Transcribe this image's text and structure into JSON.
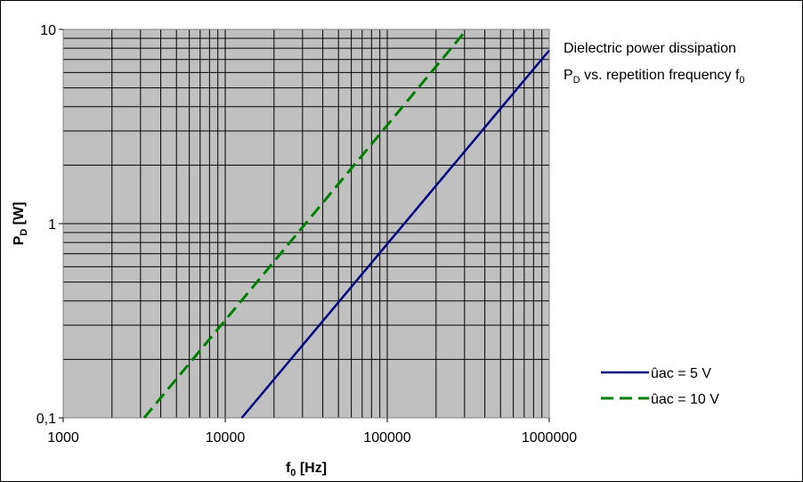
{
  "chart_data": {
    "type": "line",
    "xscale": "log",
    "yscale": "log",
    "xlim": [
      1000,
      1000000
    ],
    "ylim": [
      0.1,
      10
    ],
    "xticks": [
      "1000",
      "10000",
      "100000",
      "1000000"
    ],
    "yticks": [
      "0,1",
      "1",
      "10"
    ],
    "grid": true,
    "xlabel": {
      "main": "f",
      "sub": "0",
      "unit": " [Hz]"
    },
    "ylabel": {
      "main": "P",
      "sub": "D",
      "unit": " [W]"
    },
    "annotation": {
      "line1": "Dielectric power dissipation",
      "line2_p": "P",
      "line2_psub": "D",
      "line2_text": " vs. repetition frequency f",
      "line2_fsub": "0"
    },
    "legend_position": "bottom-right",
    "series": [
      {
        "name": "ûac = 5 V",
        "color": "#000080",
        "dash": "solid",
        "x": [
          12660,
          1000000
        ],
        "y": [
          0.1,
          7.8
        ]
      },
      {
        "name": "ûac = 10 V",
        "color": "#008000",
        "dash": "dashed",
        "x": [
          3160,
          310000
        ],
        "y": [
          0.1,
          10
        ]
      }
    ]
  }
}
